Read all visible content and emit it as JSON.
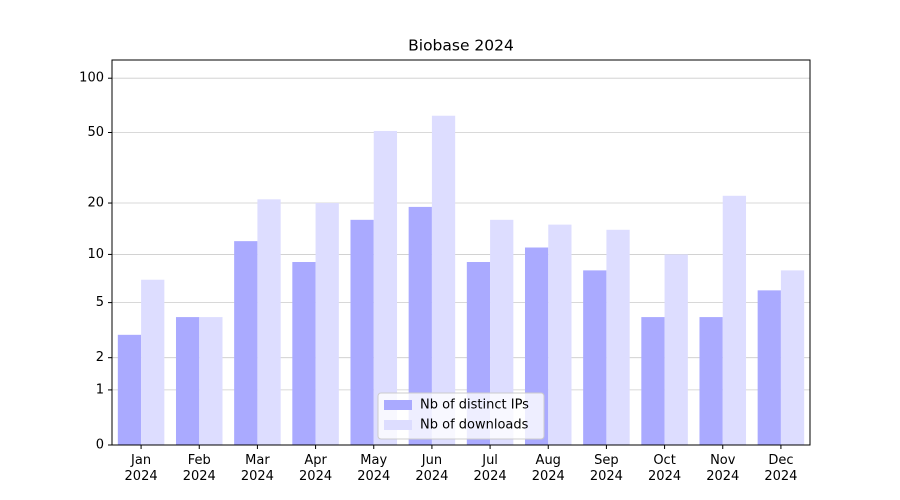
{
  "chart_data": {
    "type": "bar",
    "title": "Biobase 2024",
    "categories": [
      "Jan\n2024",
      "Feb\n2024",
      "Mar\n2024",
      "Apr\n2024",
      "May\n2024",
      "Jun\n2024",
      "Jul\n2024",
      "Aug\n2024",
      "Sep\n2024",
      "Oct\n2024",
      "Nov\n2024",
      "Dec\n2024"
    ],
    "series": [
      {
        "name": "Nb of distinct IPs",
        "color": "#aaaaff",
        "values": [
          3,
          4,
          12,
          9,
          16,
          19,
          9,
          11,
          8,
          4,
          4,
          6
        ]
      },
      {
        "name": "Nb of downloads",
        "color": "#ddddff",
        "values": [
          7,
          4,
          21,
          20,
          51,
          62,
          16,
          15,
          14,
          10,
          22,
          8
        ]
      }
    ],
    "yscale": "log1p",
    "ylim": [
      0,
      126
    ],
    "yticks": [
      0,
      1,
      2,
      5,
      10,
      20,
      50,
      100
    ],
    "grid": true,
    "legend": "lower center"
  }
}
